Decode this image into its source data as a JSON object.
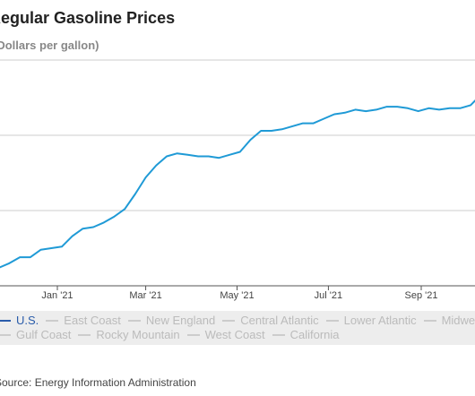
{
  "title": "Regular Gasoline Prices",
  "subtitle": "(Dollars per gallon)",
  "source": "Source: Energy Information Administration",
  "legend": {
    "row1": [
      "U.S.",
      "East Coast",
      "New England",
      "Central Atlantic",
      "Lower Atlantic",
      "Midwest"
    ],
    "row2": [
      "Gulf Coast",
      "Rocky Mountain",
      "West Coast",
      "California"
    ],
    "active": "U.S."
  },
  "colors": {
    "line": "#1f9ad6",
    "grid": "#cccccc",
    "legend_bg": "#ededed",
    "legend_inactive": "#bbbbbb",
    "legend_active": "#2a5caa"
  },
  "chart_data": {
    "type": "line",
    "title": "Regular Gasoline Prices",
    "subtitle": "(Dollars per gallon)",
    "xlabel": "",
    "ylabel": "",
    "x_tick_labels": [
      "Jan '21",
      "Mar '21",
      "May '21",
      "Jul '21",
      "Sep '21"
    ],
    "x_tick_dates": [
      "2021-01-01",
      "2021-03-01",
      "2021-05-01",
      "2021-07-01",
      "2021-09-01"
    ],
    "ylim": [
      2.0,
      3.5
    ],
    "y_gridlines": [
      2.5,
      3.0,
      3.5
    ],
    "grid": true,
    "series": [
      {
        "name": "U.S.",
        "x": [
          "2020-11-16",
          "2020-11-23",
          "2020-11-30",
          "2020-12-07",
          "2020-12-14",
          "2020-12-21",
          "2020-12-28",
          "2021-01-04",
          "2021-01-11",
          "2021-01-18",
          "2021-01-25",
          "2021-02-01",
          "2021-02-08",
          "2021-02-15",
          "2021-02-22",
          "2021-03-01",
          "2021-03-08",
          "2021-03-15",
          "2021-03-22",
          "2021-03-29",
          "2021-04-05",
          "2021-04-12",
          "2021-04-19",
          "2021-04-26",
          "2021-05-03",
          "2021-05-10",
          "2021-05-17",
          "2021-05-24",
          "2021-05-31",
          "2021-06-07",
          "2021-06-14",
          "2021-06-21",
          "2021-06-28",
          "2021-07-05",
          "2021-07-12",
          "2021-07-19",
          "2021-07-26",
          "2021-08-02",
          "2021-08-09",
          "2021-08-16",
          "2021-08-23",
          "2021-08-30",
          "2021-09-06",
          "2021-09-13",
          "2021-09-20",
          "2021-09-27",
          "2021-10-04",
          "2021-10-11"
        ],
        "values": [
          2.11,
          2.12,
          2.15,
          2.19,
          2.19,
          2.24,
          2.25,
          2.26,
          2.33,
          2.38,
          2.39,
          2.42,
          2.46,
          2.51,
          2.61,
          2.72,
          2.8,
          2.86,
          2.88,
          2.87,
          2.86,
          2.86,
          2.85,
          2.87,
          2.89,
          2.97,
          3.03,
          3.03,
          3.04,
          3.06,
          3.08,
          3.08,
          3.11,
          3.14,
          3.15,
          3.17,
          3.16,
          3.17,
          3.19,
          3.19,
          3.18,
          3.16,
          3.18,
          3.17,
          3.18,
          3.18,
          3.2,
          3.27
        ]
      }
    ]
  }
}
